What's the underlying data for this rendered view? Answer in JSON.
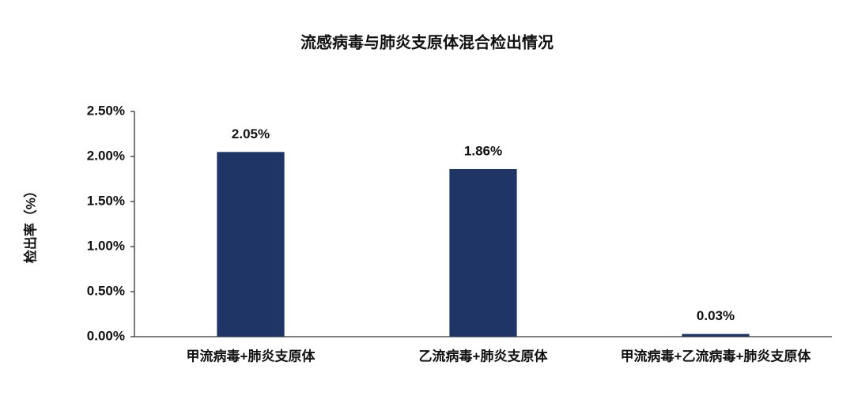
{
  "chart_data": {
    "type": "bar",
    "title": "流感病毒与肺炎支原体混合检出情况",
    "y_label": "检出率（%）",
    "categories": [
      "甲流病毒+肺炎支原体",
      "乙流病毒+肺炎支原体",
      "甲流病毒+乙流病毒+肺炎支原体"
    ],
    "values": [
      2.05,
      1.86,
      0.03
    ],
    "value_labels": [
      "2.05%",
      "1.86%",
      "0.03%"
    ],
    "color": "#1f3566",
    "ylim": [
      0,
      2.5
    ],
    "yticks": [
      {
        "value": 0,
        "label": "0.00%"
      },
      {
        "value": 0.5,
        "label": "0.50%"
      },
      {
        "value": 1,
        "label": "1.00%"
      },
      {
        "value": 1.5,
        "label": "1.50%"
      },
      {
        "value": 2,
        "label": "2.00%"
      },
      {
        "value": 2.5,
        "label": "2.50%"
      }
    ],
    "grid": false
  }
}
